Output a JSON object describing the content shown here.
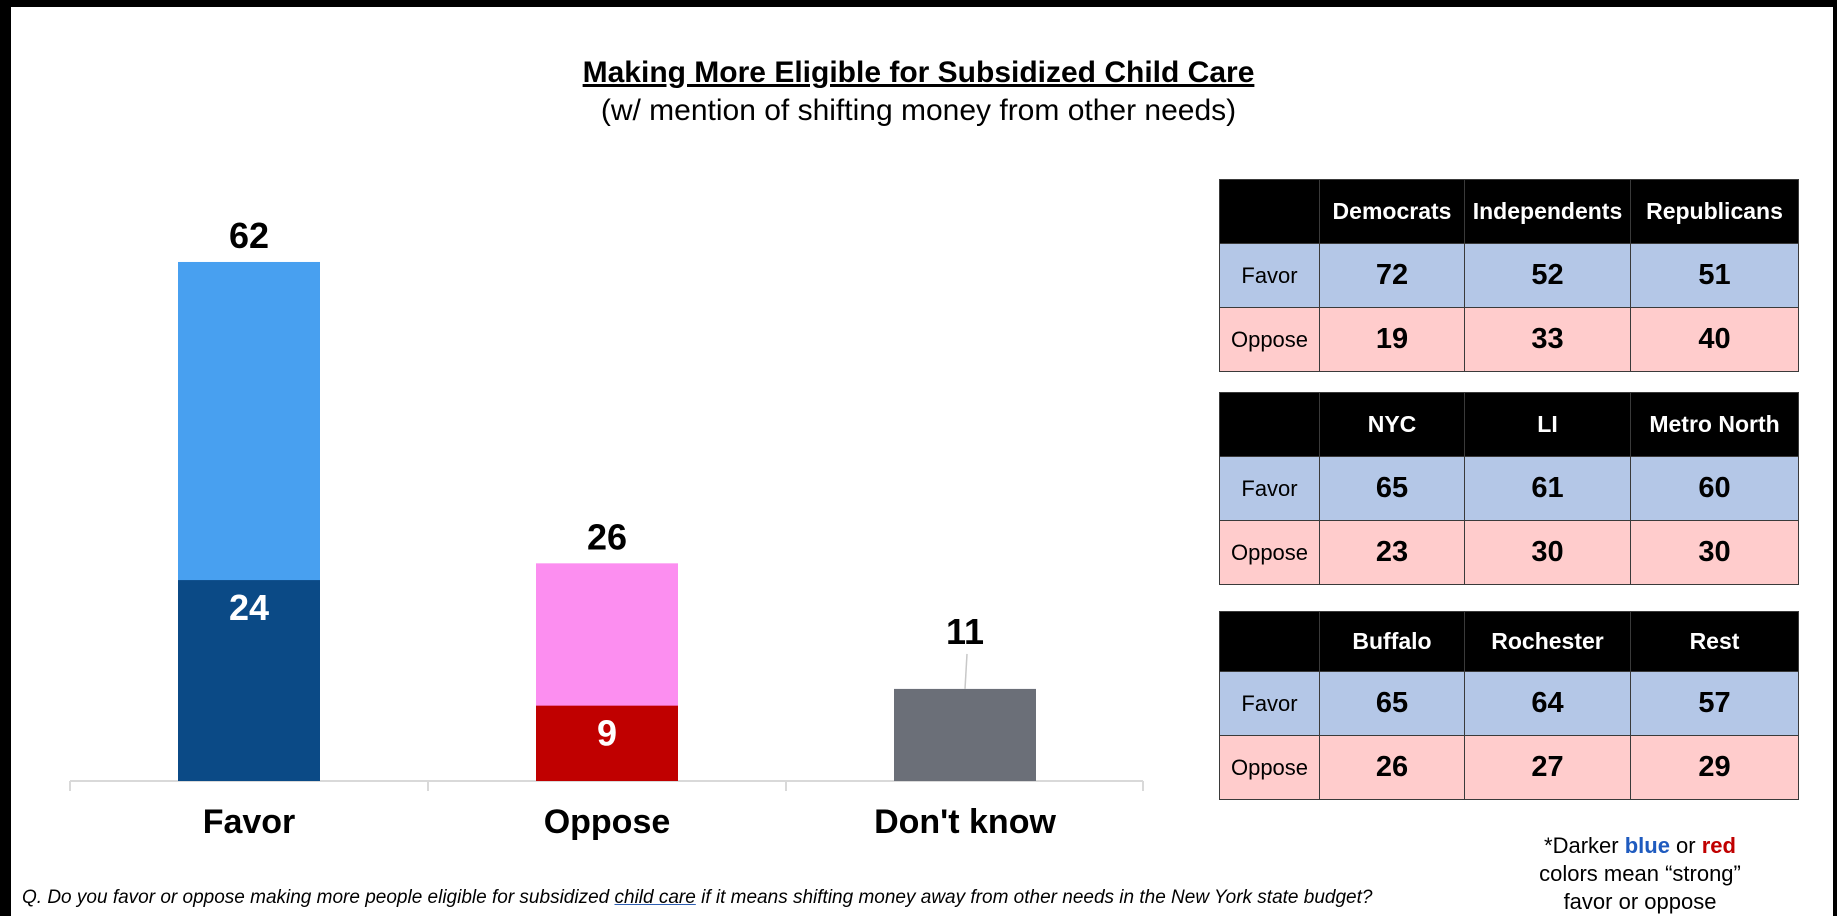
{
  "header": {
    "title": "Making More Eligible for Subsidized Child Care",
    "subtitle": "(w/ mention of shifting money from other needs)"
  },
  "chart_data": {
    "type": "bar",
    "title": "Making More Eligible for Subsidized Child Care",
    "subtitle": "(w/ mention of shifting money from other needs)",
    "categories": [
      "Favor",
      "Oppose",
      "Don't know"
    ],
    "totals": [
      62,
      26,
      11
    ],
    "strong": [
      24,
      9,
      null
    ],
    "ylim": [
      0,
      70
    ],
    "grid": false,
    "colors": {
      "favor_total": "#48a0f0",
      "favor_strong": "#0b4a86",
      "oppose_total": "#fc8ef0",
      "oppose_strong": "#c00000",
      "dont_know": "#6b6f78"
    },
    "tables": [
      {
        "headers": [
          "Democrats",
          "Independents",
          "Republicans"
        ],
        "rows": [
          {
            "label": "Favor",
            "values": [
              72,
              52,
              51
            ]
          },
          {
            "label": "Oppose",
            "values": [
              19,
              33,
              40
            ]
          }
        ]
      },
      {
        "headers": [
          "NYC",
          "LI",
          "Metro North"
        ],
        "rows": [
          {
            "label": "Favor",
            "values": [
              65,
              61,
              60
            ]
          },
          {
            "label": "Oppose",
            "values": [
              23,
              30,
              30
            ]
          }
        ]
      },
      {
        "headers": [
          "Buffalo",
          "Rochester",
          "Rest"
        ],
        "rows": [
          {
            "label": "Favor",
            "values": [
              65,
              64,
              57
            ]
          },
          {
            "label": "Oppose",
            "values": [
              26,
              27,
              29
            ]
          }
        ]
      }
    ]
  },
  "footer": {
    "question_pre": "Q. Do you favor or oppose making more people eligible for subsidized ",
    "question_underlined": "child care",
    "question_post": " if it means shifting money away from other needs in the New York state budget?",
    "note_pre": "*Darker ",
    "note_blue": "blue",
    "note_mid": " or ",
    "note_red": "red",
    "note_line2": "colors mean “strong”",
    "note_line3": "favor or oppose"
  }
}
